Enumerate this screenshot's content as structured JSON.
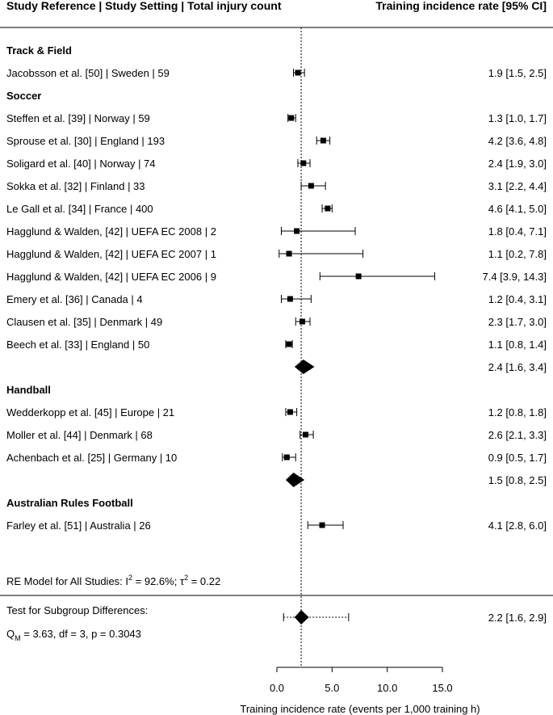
{
  "chart_data": {
    "type": "forest",
    "header_left": "Study Reference | Study Setting | Total injury count",
    "header_right": "Training incidence rate [95% CI]",
    "xlabel": "Training incidence rate (events per 1,000 training h)",
    "xlim": [
      0,
      15
    ],
    "ticks": [
      0,
      5,
      10,
      15
    ],
    "tick_labels": [
      "0.0",
      "5.0",
      "10.0",
      "15.0"
    ],
    "overall_estimate": 2.2,
    "rows": [
      {
        "kind": "group",
        "label": "Track & Field"
      },
      {
        "kind": "study",
        "label": "Jacobsson et al. [50] | Sweden | 59",
        "est": 1.9,
        "lo": 1.5,
        "hi": 2.5,
        "text": "1.9 [1.5,  2.5]"
      },
      {
        "kind": "group",
        "label": "Soccer"
      },
      {
        "kind": "study",
        "label": "Steffen et al. [39] | Norway | 59",
        "est": 1.3,
        "lo": 1.0,
        "hi": 1.7,
        "text": "1.3 [1.0,  1.7]"
      },
      {
        "kind": "study",
        "label": "Sprouse et al. [30] | England | 193",
        "est": 4.2,
        "lo": 3.6,
        "hi": 4.8,
        "text": "4.2 [3.6,  4.8]"
      },
      {
        "kind": "study",
        "label": "Soligard et al. [40] | Norway | 74",
        "est": 2.4,
        "lo": 1.9,
        "hi": 3.0,
        "text": "2.4 [1.9,  3.0]"
      },
      {
        "kind": "study",
        "label": "Sokka et al. [32] | Finland | 33",
        "est": 3.1,
        "lo": 2.2,
        "hi": 4.4,
        "text": "3.1 [2.2,  4.4]"
      },
      {
        "kind": "study",
        "label": "Le Gall et al. [34] | France | 400",
        "est": 4.6,
        "lo": 4.1,
        "hi": 5.0,
        "text": "4.6 [4.1,  5.0]"
      },
      {
        "kind": "study",
        "label": "Hagglund & Walden, [42] | UEFA EC 2008 | 2",
        "est": 1.8,
        "lo": 0.4,
        "hi": 7.1,
        "text": "1.8 [0.4,  7.1]"
      },
      {
        "kind": "study",
        "label": "Hagglund & Walden, [42] | UEFA EC 2007 | 1",
        "est": 1.1,
        "lo": 0.2,
        "hi": 7.8,
        "text": "1.1 [0.2,  7.8]"
      },
      {
        "kind": "study",
        "label": "Hagglund & Walden, [42] | UEFA EC 2006 | 9",
        "est": 7.4,
        "lo": 3.9,
        "hi": 14.3,
        "text": "7.4 [3.9, 14.3]"
      },
      {
        "kind": "study",
        "label": "Emery et al. [36] | Canada | 4",
        "est": 1.2,
        "lo": 0.4,
        "hi": 3.1,
        "text": "1.2 [0.4,  3.1]"
      },
      {
        "kind": "study",
        "label": "Clausen et al. [35] | Denmark | 49",
        "est": 2.3,
        "lo": 1.7,
        "hi": 3.0,
        "text": "2.3 [1.7,  3.0]"
      },
      {
        "kind": "study",
        "label": "Beech et al. [33] | England | 50",
        "est": 1.1,
        "lo": 0.8,
        "hi": 1.4,
        "text": "1.1 [0.8,  1.4]"
      },
      {
        "kind": "summary",
        "est": 2.4,
        "lo": 1.6,
        "hi": 3.4,
        "text": "2.4 [1.6, 3.4]"
      },
      {
        "kind": "group",
        "label": "Handball"
      },
      {
        "kind": "study",
        "label": "Wedderkopp et al. [45] | Europe | 21",
        "est": 1.2,
        "lo": 0.8,
        "hi": 1.8,
        "text": "1.2 [0.8,  1.8]"
      },
      {
        "kind": "study",
        "label": "Moller et al. [44] | Denmark | 68",
        "est": 2.6,
        "lo": 2.1,
        "hi": 3.3,
        "text": "2.6 [2.1,  3.3]"
      },
      {
        "kind": "study",
        "label": "Achenbach et al. [25] | Germany | 10",
        "est": 0.9,
        "lo": 0.5,
        "hi": 1.7,
        "text": "0.9 [0.5,  1.7]"
      },
      {
        "kind": "summary",
        "est": 1.5,
        "lo": 0.8,
        "hi": 2.5,
        "text": "1.5 [0.8, 2.5]"
      },
      {
        "kind": "group",
        "label": "Australian Rules Football"
      },
      {
        "kind": "study",
        "label": "Farley et al. [51] | Australia | 26",
        "est": 4.1,
        "lo": 2.8,
        "hi": 6.0,
        "text": "4.1 [2.8,  6.0]"
      }
    ],
    "re_model": {
      "prefix": "RE Model for All Studies: I",
      "i2_sup": "2",
      "i2_value": " = 92.6%; ",
      "tau": "τ",
      "tau_sup": "2",
      "tau_value": " = 0.22"
    },
    "subgroup_test": {
      "title": "Test for Subgroup Differences:",
      "q": "Q",
      "q_sub": "M",
      "q_value": " = 3.63, df = 3, p = 0.3043",
      "est": 2.2,
      "lo": 1.6,
      "hi": 2.9,
      "pi_lo": 0.6,
      "pi_hi": 6.5,
      "text": "2.2 [1.6, 2.9]"
    }
  }
}
